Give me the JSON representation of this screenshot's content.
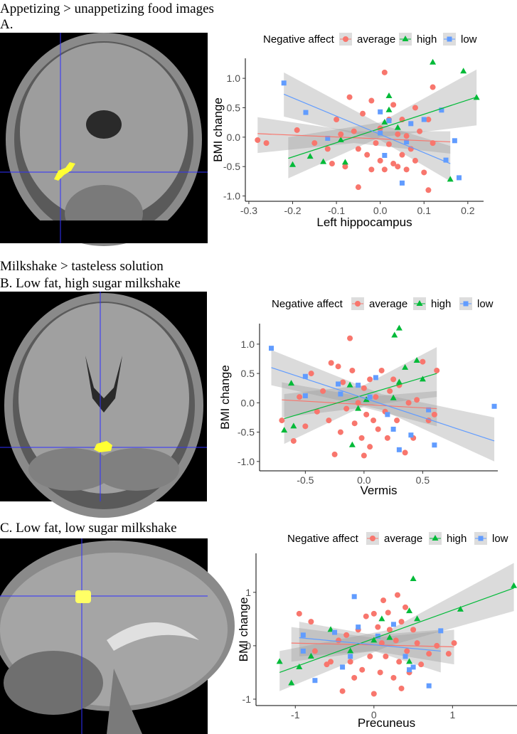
{
  "captions": [
    "Appetizing > unappetizing food images",
    "A.",
    "Milkshake > tasteless solution",
    "B. Low fat, high sugar milkshake",
    "C. Low fat, low sugar milkshake"
  ],
  "chart_data": [
    {
      "type": "scatter",
      "legend_title": "Negative affect",
      "x_label": "Left hippocampus",
      "y_label": "BMI change",
      "xlim": [
        -0.308,
        0.236
      ],
      "ylim": [
        -1.09,
        1.34
      ],
      "xticks": [
        -0.3,
        -0.2,
        -0.1,
        {
          "value": 0,
          "label": "0.0"
        },
        0.1,
        0.2
      ],
      "yticks": [
        {
          "value": -1,
          "label": "-1.0"
        },
        -0.5,
        {
          "value": 0,
          "label": "0.0"
        },
        0.5,
        {
          "value": 1,
          "label": "1.0"
        }
      ],
      "series": [
        {
          "name": "average",
          "color": "#F8766D",
          "marker": "circle",
          "x": [
            -0.28,
            -0.26,
            -0.19,
            -0.15,
            -0.12,
            -0.1,
            -0.09,
            -0.08,
            -0.07,
            -0.06,
            -0.05,
            -0.04,
            -0.03,
            -0.02,
            -0.02,
            -0.01,
            0,
            0,
            0.01,
            0.01,
            0.02,
            0.02,
            0.03,
            0.03,
            0.04,
            0.04,
            0.05,
            0.05,
            0.06,
            0.07,
            0.08,
            0.08,
            0.09,
            0.1,
            0.11,
            0.11,
            0.12,
            0.12,
            -0.05,
            -0.11,
            0.06
          ],
          "values": [
            -0.05,
            -0.1,
            0.12,
            -0.1,
            -0.2,
            0.3,
            0.05,
            -0.5,
            0.68,
            0.1,
            -0.2,
            0.4,
            -0.3,
            -0.55,
            0.62,
            -0.1,
            0.15,
            -0.4,
            1.1,
            -0.55,
            0.3,
            -0.12,
            0.55,
            -0.45,
            0.05,
            -0.5,
            0.3,
            -0.3,
            0.02,
            -0.2,
            0.5,
            -0.4,
            0.1,
            -0.6,
            0.3,
            -0.9,
            0.85,
            -0.1,
            -0.85,
            -0.45,
            -0.55
          ],
          "fit": {
            "x": [
              -0.28,
              0.16
            ],
            "y": [
              0.06,
              -0.08
            ]
          },
          "band": {
            "x": [
              -0.28,
              -0.06,
              0.16
            ],
            "lower": [
              -0.27,
              -0.1,
              -0.28
            ],
            "upper": [
              0.34,
              0.1,
              0.1
            ]
          }
        },
        {
          "name": "high",
          "color": "#00BA38",
          "marker": "triangle",
          "x": [
            -0.2,
            -0.16,
            -0.13,
            -0.08,
            -0.09,
            0.01,
            0.02,
            0.02,
            0.04,
            0.12,
            0.16,
            0.19,
            0.22
          ],
          "values": [
            -0.47,
            -0.33,
            -0.42,
            -0.43,
            -0.05,
            0.25,
            0.7,
            0.46,
            0.16,
            1.27,
            -0.72,
            1.12,
            0.67
          ],
          "fit": {
            "x": [
              -0.21,
              0.22
            ],
            "y": [
              -0.36,
              0.68
            ]
          },
          "band": {
            "x": [
              -0.21,
              0,
              0.22
            ],
            "lower": [
              -0.7,
              0,
              0.2
            ],
            "upper": [
              0,
              0.25,
              1.15
            ]
          }
        },
        {
          "name": "low",
          "color": "#619CFF",
          "marker": "square",
          "x": [
            -0.22,
            -0.17,
            -0.12,
            0,
            0,
            0.01,
            0.02,
            0.05,
            0.06,
            0.07,
            0.1,
            0.14,
            0.15,
            0.18,
            0.17
          ],
          "values": [
            0.92,
            0.42,
            -0.02,
            0.43,
            0.07,
            -0.31,
            0.28,
            -0.78,
            -0.08,
            0.23,
            0.3,
            0.46,
            -0.39,
            -0.69,
            -0.06
          ],
          "fit": {
            "x": [
              -0.22,
              0.16
            ],
            "y": [
              0.73,
              -0.45
            ]
          },
          "band": {
            "x": [
              -0.22,
              0,
              0.16
            ],
            "lower": [
              0.35,
              -0.05,
              -0.75
            ],
            "upper": [
              1.1,
              0.22,
              -0.15
            ]
          }
        }
      ]
    },
    {
      "type": "scatter",
      "legend_title": "Negative affect",
      "x_label": "Vermis",
      "y_label": "BMI change",
      "xlim": [
        -0.89,
        1.14
      ],
      "ylim": [
        -1.16,
        1.35
      ],
      "xticks": [
        -0.5,
        {
          "value": 0,
          "label": "0.0"
        },
        0.5
      ],
      "yticks": [
        {
          "value": -1,
          "label": "-1.0"
        },
        -0.5,
        {
          "value": 0,
          "label": "0.0"
        },
        0.5,
        {
          "value": 1,
          "label": "1.0"
        }
      ],
      "series": [
        {
          "name": "average",
          "color": "#F8766D",
          "marker": "circle",
          "x": [
            -0.7,
            -0.6,
            -0.5,
            -0.45,
            -0.4,
            -0.35,
            -0.3,
            -0.28,
            -0.25,
            -0.22,
            -0.2,
            -0.18,
            -0.15,
            -0.12,
            -0.1,
            -0.08,
            -0.05,
            -0.02,
            0,
            0.02,
            0.05,
            0.05,
            0.08,
            0.1,
            0.12,
            0.15,
            0.18,
            0.2,
            0.22,
            0.25,
            0.28,
            0.3,
            0.35,
            0.38,
            0.42,
            0.45,
            0.5,
            0.55,
            0.6,
            0.62,
            -0.55,
            0
          ],
          "values": [
            -0.3,
            -0.65,
            -0.4,
            0.5,
            -0.15,
            0.2,
            -0.3,
            0.68,
            -0.88,
            0.62,
            -0.5,
            0.35,
            -0.1,
            1.1,
            0.55,
            -0.35,
            0,
            -0.6,
            0.25,
            -0.2,
            0.4,
            -0.75,
            -0.3,
            0.1,
            -0.45,
            0.55,
            -0.15,
            -0.6,
            0.2,
            0.4,
            -0.3,
            0.3,
            -0.85,
            0,
            -0.6,
            0.05,
            0.7,
            -0.3,
            -0.2,
            0.55,
            0.1,
            -0.9
          ],
          "fit": {
            "x": [
              -0.7,
              0.62
            ],
            "y": [
              0.05,
              -0.1
            ]
          },
          "band": {
            "x": [
              -0.7,
              0,
              0.62
            ],
            "lower": [
              -0.25,
              -0.08,
              -0.4
            ],
            "upper": [
              0.35,
              0.1,
              0.2
            ]
          }
        },
        {
          "name": "high",
          "color": "#00BA38",
          "marker": "triangle",
          "x": [
            -0.68,
            -0.62,
            -0.6,
            -0.12,
            -0.05,
            -0.1,
            0.3,
            0.26,
            0.25,
            0.3,
            0.35,
            0.45,
            0.5,
            0.02
          ],
          "values": [
            -0.47,
            0.33,
            -0.4,
            0.3,
            -0.1,
            -0.72,
            1.27,
            1.15,
            0.08,
            0.35,
            0.6,
            0.72,
            0.4,
            0.05
          ],
          "fit": {
            "x": [
              -0.68,
              0.62
            ],
            "y": [
              -0.27,
              0.5
            ]
          },
          "band": {
            "x": [
              -0.68,
              0,
              0.62
            ],
            "lower": [
              -0.7,
              -0.05,
              0.1
            ],
            "upper": [
              0.15,
              0.3,
              0.95
            ]
          }
        },
        {
          "name": "low",
          "color": "#619CFF",
          "marker": "square",
          "x": [
            -0.79,
            -0.5,
            -0.5,
            -0.22,
            -0.2,
            -0.05,
            0.05,
            0.1,
            0.2,
            0.25,
            0.3,
            0.4,
            0.6,
            0.55,
            1.11
          ],
          "values": [
            0.93,
            0.45,
            0.12,
            0.32,
            0.15,
            0.3,
            0.1,
            0.43,
            -0.2,
            -0.45,
            -0.8,
            -0.55,
            -0.72,
            -0.12,
            -0.06
          ],
          "fit": {
            "x": [
              -0.79,
              1.11
            ],
            "y": [
              0.6,
              -0.65
            ]
          },
          "band": {
            "x": [
              -0.79,
              0.15,
              1.11
            ],
            "lower": [
              0.3,
              -0.12,
              -1
            ],
            "upper": [
              0.9,
              0.15,
              -0.25
            ]
          }
        }
      ]
    },
    {
      "type": "scatter",
      "legend_title": "Negative affect",
      "x_label": "Precuneus",
      "y_label": "BMI change",
      "xlim": [
        -1.5,
        1.82
      ],
      "ylim": [
        -1.12,
        1.73
      ],
      "xticks": [
        -1,
        0,
        1
      ],
      "yticks": [
        -1,
        0,
        1
      ],
      "series": [
        {
          "name": "average",
          "color": "#F8766D",
          "marker": "circle",
          "x": [
            -0.95,
            -0.8,
            -0.75,
            -0.6,
            -0.55,
            -0.45,
            -0.4,
            -0.35,
            -0.3,
            -0.2,
            -0.15,
            -0.1,
            -0.05,
            0,
            0.05,
            0.08,
            0.1,
            0.12,
            0.15,
            0.18,
            0.2,
            0.25,
            0.28,
            0.3,
            0.32,
            0.35,
            0.4,
            0.42,
            0.45,
            0.5,
            0.55,
            0.6,
            0.7,
            0.8,
            0.95,
            1.02,
            0,
            -0.25,
            0.35
          ],
          "values": [
            0.6,
            0.45,
            -0.1,
            -0.35,
            -0.3,
            0.1,
            -0.85,
            0.2,
            -0.3,
            0.3,
            -0.45,
            0.55,
            -0.2,
            -0.9,
            0.35,
            -0.5,
            0.05,
            0.85,
            -0.2,
            0.62,
            0.3,
            -0.6,
            0.1,
            0.95,
            -0.3,
            0.45,
            0.72,
            -0.1,
            -0.5,
            0.3,
            0.05,
            -0.35,
            -0.15,
            0,
            -0.15,
            0.05,
            0.6,
            -0.6,
            -0.8
          ],
          "fit": {
            "x": [
              -1.05,
              1.02
            ],
            "y": [
              0.05,
              -0.02
            ]
          },
          "band": {
            "x": [
              -1.05,
              0,
              1.02
            ],
            "lower": [
              -0.3,
              -0.1,
              -0.35
            ],
            "upper": [
              0.35,
              0.15,
              0.3
            ]
          }
        },
        {
          "name": "high",
          "color": "#00BA38",
          "marker": "triangle",
          "x": [
            -1.2,
            -1.05,
            -0.95,
            -0.8,
            -0.55,
            -0.3,
            0,
            0.1,
            0.2,
            0.45,
            0.5,
            0.55,
            1.1,
            1.78,
            0.45
          ],
          "values": [
            -0.3,
            -0.7,
            -0.4,
            -0.2,
            0.3,
            -0.1,
            0.1,
            0.5,
            0.15,
            0.65,
            1.25,
            0.5,
            0.68,
            1.12,
            -0.3
          ],
          "fit": {
            "x": [
              -1.2,
              1.78
            ],
            "y": [
              -0.5,
              1.08
            ]
          },
          "band": {
            "x": [
              -1.2,
              0.2,
              1.78
            ],
            "lower": [
              -0.85,
              0,
              0.65
            ],
            "upper": [
              -0.1,
              0.3,
              1.55
            ]
          }
        },
        {
          "name": "low",
          "color": "#619CFF",
          "marker": "square",
          "x": [
            -0.9,
            -0.9,
            -0.5,
            -0.25,
            -0.2,
            -0.4,
            -0.3,
            0.05,
            0.25,
            0.4,
            0.5,
            0.7,
            0.85,
            -0.75,
            0.45
          ],
          "values": [
            0.2,
            -0.1,
            0.25,
            0.92,
            0.35,
            -0.4,
            -0.2,
            0.18,
            0.4,
            -0.2,
            -0.4,
            -0.75,
            0.28,
            -0.65,
            -0.45
          ],
          "fit": {
            "x": [
              -0.95,
              0.85
            ],
            "y": [
              0.15,
              -0.1
            ]
          },
          "band": {
            "x": [
              -0.95,
              0,
              0.85
            ],
            "lower": [
              -0.2,
              -0.1,
              -0.5
            ],
            "upper": [
              0.45,
              0.2,
              0.3
            ]
          }
        }
      ]
    }
  ]
}
